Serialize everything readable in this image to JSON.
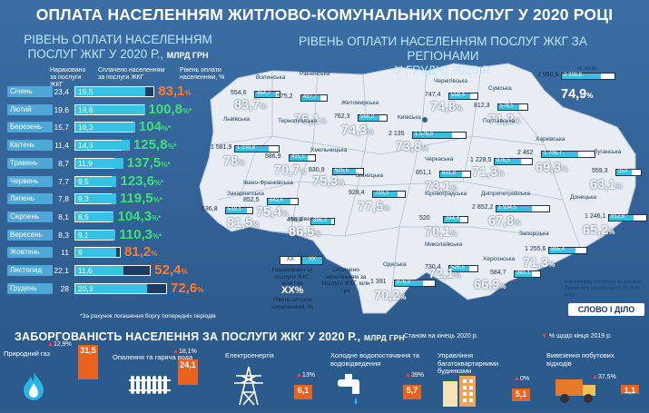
{
  "title": "ОПЛАТА НАСЕЛЕННЯМ ЖИТЛОВО-КОМУНАЛЬНИХ ПОСЛУГ У 2020 РОЦІ",
  "left_panel": {
    "heading_line1": "РІВЕНЬ ОПЛАТИ НАСЕЛЕННЯМ",
    "heading_line2": "ПОСЛУГ ЖКГ У 2020 Р.,",
    "heading_unit": "МЛРД ГРН",
    "col_accrued": "Нараховано за послуги ЖКГ",
    "col_paid": "Сплачено населенням за послуги ЖКГ",
    "col_level": "Рівень оплати населенням, %",
    "footnote": "*За рахунок погашення боргу попередніх періодів"
  },
  "right_panel": {
    "heading_line1": "РІВЕНЬ ОПЛАТИ НАСЕЛЕННЯМ ПОСЛУГ ЖКГ ЗА РЕГІОНАМИ",
    "heading_line2": "У ГРУДНІ 2020 Р."
  },
  "legend": {
    "sample_value": "ХХ",
    "accrued_label": "Нараховано за послуги ЖКГ, млн грн",
    "paid_label": "Сплачено населенням за послуги ЖКГ, млн грн",
    "pct_sample": "ХХ%",
    "pct_label": "Рівень оплати населенням, %"
  },
  "source_note": "Інфографіку створено за даними Держстату станом на 02.02.2020 року",
  "brand": "СЛОВО І ДІЛО",
  "debt": {
    "title": "ЗАБОРГОВАНІСТЬ НАСЕЛЕННЯ ЗА ПОСЛУГИ ЖКГ У 2020 Р.,",
    "unit": "МЛРД ГРН",
    "asof": "Станом на кінець 2020 р.",
    "growth_note": "% щодо кінця 2019 р.",
    "items": [
      {
        "name": "Природний газ",
        "growth": "12,9%",
        "value": "31,5",
        "icon": "flame-icon"
      },
      {
        "name": "Опалення та гаряча вода",
        "growth": "18,1%",
        "value": "24,1",
        "icon": "radiator-icon"
      },
      {
        "name": "Електроенергія",
        "growth": "13%",
        "value": "6,1",
        "icon": "power-tower-icon"
      },
      {
        "name": "Холодне водопостачання та водовідведення",
        "growth": "39%",
        "value": "5,7",
        "icon": "faucet-icon"
      },
      {
        "name": "Управління багатоквартирними будинками",
        "growth": "0%",
        "value": "5,1",
        "icon": "buildings-icon"
      },
      {
        "name": "Вивезення побутових відходів",
        "growth": "37,5%",
        "value": "1,1",
        "icon": "garbage-truck-icon"
      }
    ]
  },
  "chart_data": [
    {
      "type": "bar",
      "title": "РІВЕНЬ ОПЛАТИ НАСЕЛЕННЯМ ПОСЛУГ ЖКГ У 2020 Р., МЛРД ГРН",
      "categories": [
        "Січень",
        "Лютий",
        "Березень",
        "Квітень",
        "Травень",
        "Червень",
        "Липень",
        "Серпень",
        "Вересень",
        "Жовтень",
        "Листопад",
        "Грудень"
      ],
      "series": [
        {
          "name": "Нараховано за послуги ЖКГ",
          "values": [
            23.4,
            19.6,
            15.7,
            11.4,
            8.7,
            7.7,
            7.8,
            8.1,
            8.3,
            11,
            22.1,
            28
          ]
        },
        {
          "name": "Сплачено населенням за послуги ЖКГ",
          "values": [
            19.5,
            19.8,
            16.3,
            14.3,
            11.9,
            9.5,
            9.3,
            8.5,
            9.1,
            9,
            11.6,
            20.3
          ]
        },
        {
          "name": "Рівень оплати населенням, %",
          "values": [
            83.1,
            100.8,
            104,
            125.8,
            137.5,
            123.6,
            119.5,
            104.3,
            110.3,
            81.2,
            52.4,
            72.6
          ]
        }
      ],
      "value_labels": [
        "19,5",
        "19,8",
        "16,3",
        "14,3",
        "11,9",
        "9,5",
        "9,3",
        "8,5",
        "9,1",
        "9",
        "11,6",
        "20,3"
      ],
      "accrued_labels": [
        "23,4",
        "19,6",
        "15,7",
        "11,4",
        "8,7",
        "7,7",
        "7,8",
        "8,1",
        "8,3",
        "11",
        "22,1",
        "28"
      ],
      "pct_labels": [
        "83,1",
        "100,8",
        "104",
        "125,8",
        "137,5",
        "123,6",
        "119,5",
        "104,3",
        "110,3",
        "81,2",
        "52,4",
        "72,6"
      ],
      "over_100_marker": "*",
      "colors": {
        "paid": "#35c2e3",
        "good": "#3fe07a",
        "bad": "#ff7a2e"
      }
    },
    {
      "type": "table",
      "title": "РІВЕНЬ ОПЛАТИ НАСЕЛЕННЯМ ПОСЛУГ ЖКГ ЗА РЕГІОНАМИ У ГРУДНІ 2020 Р.",
      "regions": [
        {
          "name": "Волинська",
          "accrued": "554,6",
          "paid": "464,7",
          "pct": "83,7"
        },
        {
          "name": "Рівненська",
          "accrued": "575,2",
          "paid": "437,7",
          "pct": "76,1"
        },
        {
          "name": "Житомирська",
          "accrued": "762,3",
          "paid": "566,3",
          "pct": "74,3"
        },
        {
          "name": "Чернігівська",
          "accrued": "747,4",
          "paid": "559,4",
          "pct": "74,8"
        },
        {
          "name": "Сумська",
          "accrued": "812,3",
          "paid": "578,5",
          "pct": "71,2"
        },
        {
          "name": "м. Київ",
          "accrued": "2 950,6",
          "paid": "2 208,8",
          "pct": "74,9"
        },
        {
          "name": "Львівська",
          "accrued": "1 581,9",
          "paid": "1 233,8",
          "pct": "78"
        },
        {
          "name": "Тернопільська",
          "accrued": "586,9",
          "paid": "415,5",
          "pct": "70,7"
        },
        {
          "name": "Хмельницька",
          "accrued": "830,9",
          "paid": "625,5",
          "pct": "75,3"
        },
        {
          "name": "Київська",
          "accrued": "2 135",
          "paid": "1 576,8",
          "pct": "73,8"
        },
        {
          "name": "Полтавська",
          "accrued": "1 228,5",
          "paid": "876,5",
          "pct": "71,3"
        },
        {
          "name": "Харківська",
          "accrued": "2 462",
          "paid": "1 706,7",
          "pct": "69,3"
        },
        {
          "name": "Луганська",
          "accrued": "559,3",
          "paid": "353",
          "pct": "63,1"
        },
        {
          "name": "Закарпатська",
          "accrued": "636,8",
          "paid": "519,1",
          "pct": "81,5"
        },
        {
          "name": "Івано-Франківська",
          "accrued": "852,5",
          "paid": "642,6",
          "pct": "75,4"
        },
        {
          "name": "Чернівецька",
          "accrued": "458,2",
          "paid": "396,3",
          "pct": "86,5"
        },
        {
          "name": "Вінницька",
          "accrued": "928,4",
          "paid": "719,3",
          "pct": "77,5"
        },
        {
          "name": "Черкаська",
          "accrued": "851,1",
          "paid": "621,8",
          "pct": "73,1"
        },
        {
          "name": "Кіровоградська",
          "accrued": "520",
          "paid": "364,4",
          "pct": "70,1"
        },
        {
          "name": "Дніпропетровська",
          "accrued": "2 852,2",
          "paid": "1 934,5",
          "pct": "67,8"
        },
        {
          "name": "Донецька",
          "accrued": "1 246,1",
          "paid": "812,8",
          "pct": "65,2"
        },
        {
          "name": "Запорізька",
          "accrued": "1 255,6",
          "paid": "895,4",
          "pct": "71,3"
        },
        {
          "name": "Миколаївська",
          "accrued": "730,4",
          "paid": "526,5",
          "pct": "72,1"
        },
        {
          "name": "Херсонська",
          "accrued": "584,7",
          "paid": "391,1",
          "pct": "66,9"
        },
        {
          "name": "Одеська",
          "accrued": "1 391",
          "paid": "976,3",
          "pct": "70,2"
        }
      ]
    }
  ]
}
